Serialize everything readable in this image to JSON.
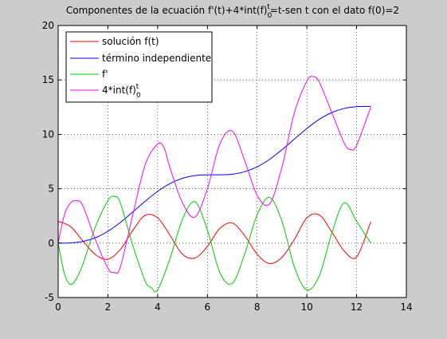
{
  "chart_data": {
    "type": "line",
    "title": "Componentes de la ecuación f'(t)+4*int(f)",
    "title_sub": "0",
    "title_sup": "t",
    "title_rest": "=t-sen t con el dato f(0)=2",
    "xlim": [
      0,
      14
    ],
    "ylim": [
      -5,
      20
    ],
    "xticks": [
      "0",
      "2",
      "4",
      "6",
      "8",
      "10",
      "12",
      "14"
    ],
    "yticks": [
      "-5",
      "0",
      "5",
      "10",
      "15",
      "20"
    ],
    "grid": true,
    "legend_placement": "top-left",
    "series": [
      {
        "name": "solución f(t)",
        "color": "#ff0000",
        "x": [
          0,
          0.5,
          1,
          1.5,
          2,
          2.5,
          3,
          3.5,
          4,
          4.5,
          5,
          5.5,
          6,
          6.5,
          7,
          7.5,
          8,
          8.5,
          9,
          9.5,
          10,
          10.5,
          11,
          11.5,
          12,
          12.57
        ],
        "y": [
          2,
          1.52,
          0.18,
          -1.06,
          -1.48,
          -0.59,
          1.17,
          2.56,
          2.33,
          0.71,
          -1.02,
          -1.37,
          -0.3,
          1.35,
          1.85,
          0.69,
          -1.02,
          -1.88,
          -1.3,
          0.34,
          2.33,
          2.59,
          1.04,
          -0.72,
          -1.27,
          1.97
        ]
      },
      {
        "name": "término independiente",
        "color": "#0000ff",
        "x": [
          0,
          0.5,
          1,
          1.5,
          2,
          2.5,
          3,
          3.5,
          4,
          4.5,
          5,
          5.5,
          6,
          6.5,
          7,
          7.5,
          8,
          8.5,
          9,
          9.5,
          10,
          10.5,
          11,
          11.5,
          12,
          12.57
        ],
        "y": [
          0,
          0.02,
          0.16,
          0.5,
          1.09,
          1.9,
          2.86,
          3.85,
          4.76,
          5.48,
          5.96,
          6.21,
          6.28,
          6.28,
          6.34,
          6.56,
          7.01,
          7.7,
          8.59,
          9.57,
          10.54,
          11.38,
          12.0,
          12.38,
          12.54,
          12.57
        ]
      },
      {
        "name": "f'",
        "color": "#00cc00",
        "x": [
          0,
          0.25,
          0.5,
          0.75,
          1,
          1.5,
          2,
          2.25,
          2.5,
          3,
          3.5,
          3.75,
          4,
          4.5,
          5,
          5.5,
          6,
          6.5,
          7,
          7.5,
          8,
          8.5,
          9,
          9.5,
          10,
          10.5,
          11,
          11.5,
          12,
          12.57
        ],
        "y": [
          0,
          -2.8,
          -3.8,
          -3.2,
          -1.9,
          1.5,
          3.9,
          4.3,
          3.7,
          -0.2,
          -3.5,
          -4.1,
          -4.3,
          -1.4,
          2.2,
          3.8,
          1.2,
          -2.7,
          -3.7,
          -1.0,
          2.6,
          4.2,
          2.0,
          -2.2,
          -4.3,
          -3.0,
          0.9,
          3.7,
          2.0,
          0.0
        ]
      },
      {
        "name": "4*int(f)",
        "name_sub": "0",
        "name_sup": "t",
        "color": "#ff00ff",
        "x": [
          0,
          0.25,
          0.5,
          0.75,
          1,
          1.5,
          2,
          2.25,
          2.5,
          3,
          3.5,
          4,
          4.25,
          4.5,
          5,
          5.5,
          6,
          6.5,
          7,
          7.5,
          8,
          8.5,
          9,
          9.5,
          10,
          10.25,
          10.5,
          11,
          11.5,
          11.75,
          12,
          12.57
        ],
        "y": [
          0,
          2.6,
          3.7,
          3.9,
          3.4,
          0.3,
          -2.3,
          -2.7,
          -2.2,
          2.6,
          7.2,
          9.1,
          8.8,
          6.9,
          3.7,
          2.4,
          5.0,
          9.1,
          10.3,
          7.6,
          4.4,
          3.6,
          7.0,
          12.0,
          14.9,
          15.3,
          14.8,
          12.0,
          9.2,
          8.6,
          9.0,
          12.5
        ]
      }
    ]
  }
}
